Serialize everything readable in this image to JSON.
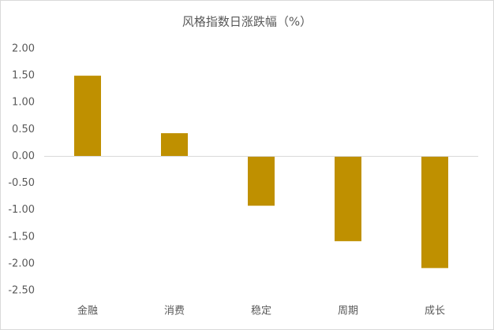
{
  "chart_data": {
    "type": "bar",
    "title": "风格指数日涨跌幅（%）",
    "categories": [
      "金融",
      "消费",
      "稳定",
      "周期",
      "成长"
    ],
    "values": [
      1.5,
      0.43,
      -0.92,
      -1.58,
      -2.08
    ],
    "color": "#bf9000",
    "ylim": [
      -2.5,
      2.0
    ],
    "yticks": [
      {
        "value": 2.0,
        "label": "2.00"
      },
      {
        "value": 1.5,
        "label": "1.50"
      },
      {
        "value": 1.0,
        "label": "1.00"
      },
      {
        "value": 0.5,
        "label": "0.50"
      },
      {
        "value": 0,
        "label": "0.00"
      },
      {
        "value": -0.5,
        "label": "-0.50"
      },
      {
        "value": -1.0,
        "label": "-1.00"
      },
      {
        "value": -1.5,
        "label": "-1.50"
      },
      {
        "value": -2.0,
        "label": "-2.00"
      },
      {
        "value": -2.5,
        "label": "-2.50"
      }
    ],
    "grid": false
  }
}
